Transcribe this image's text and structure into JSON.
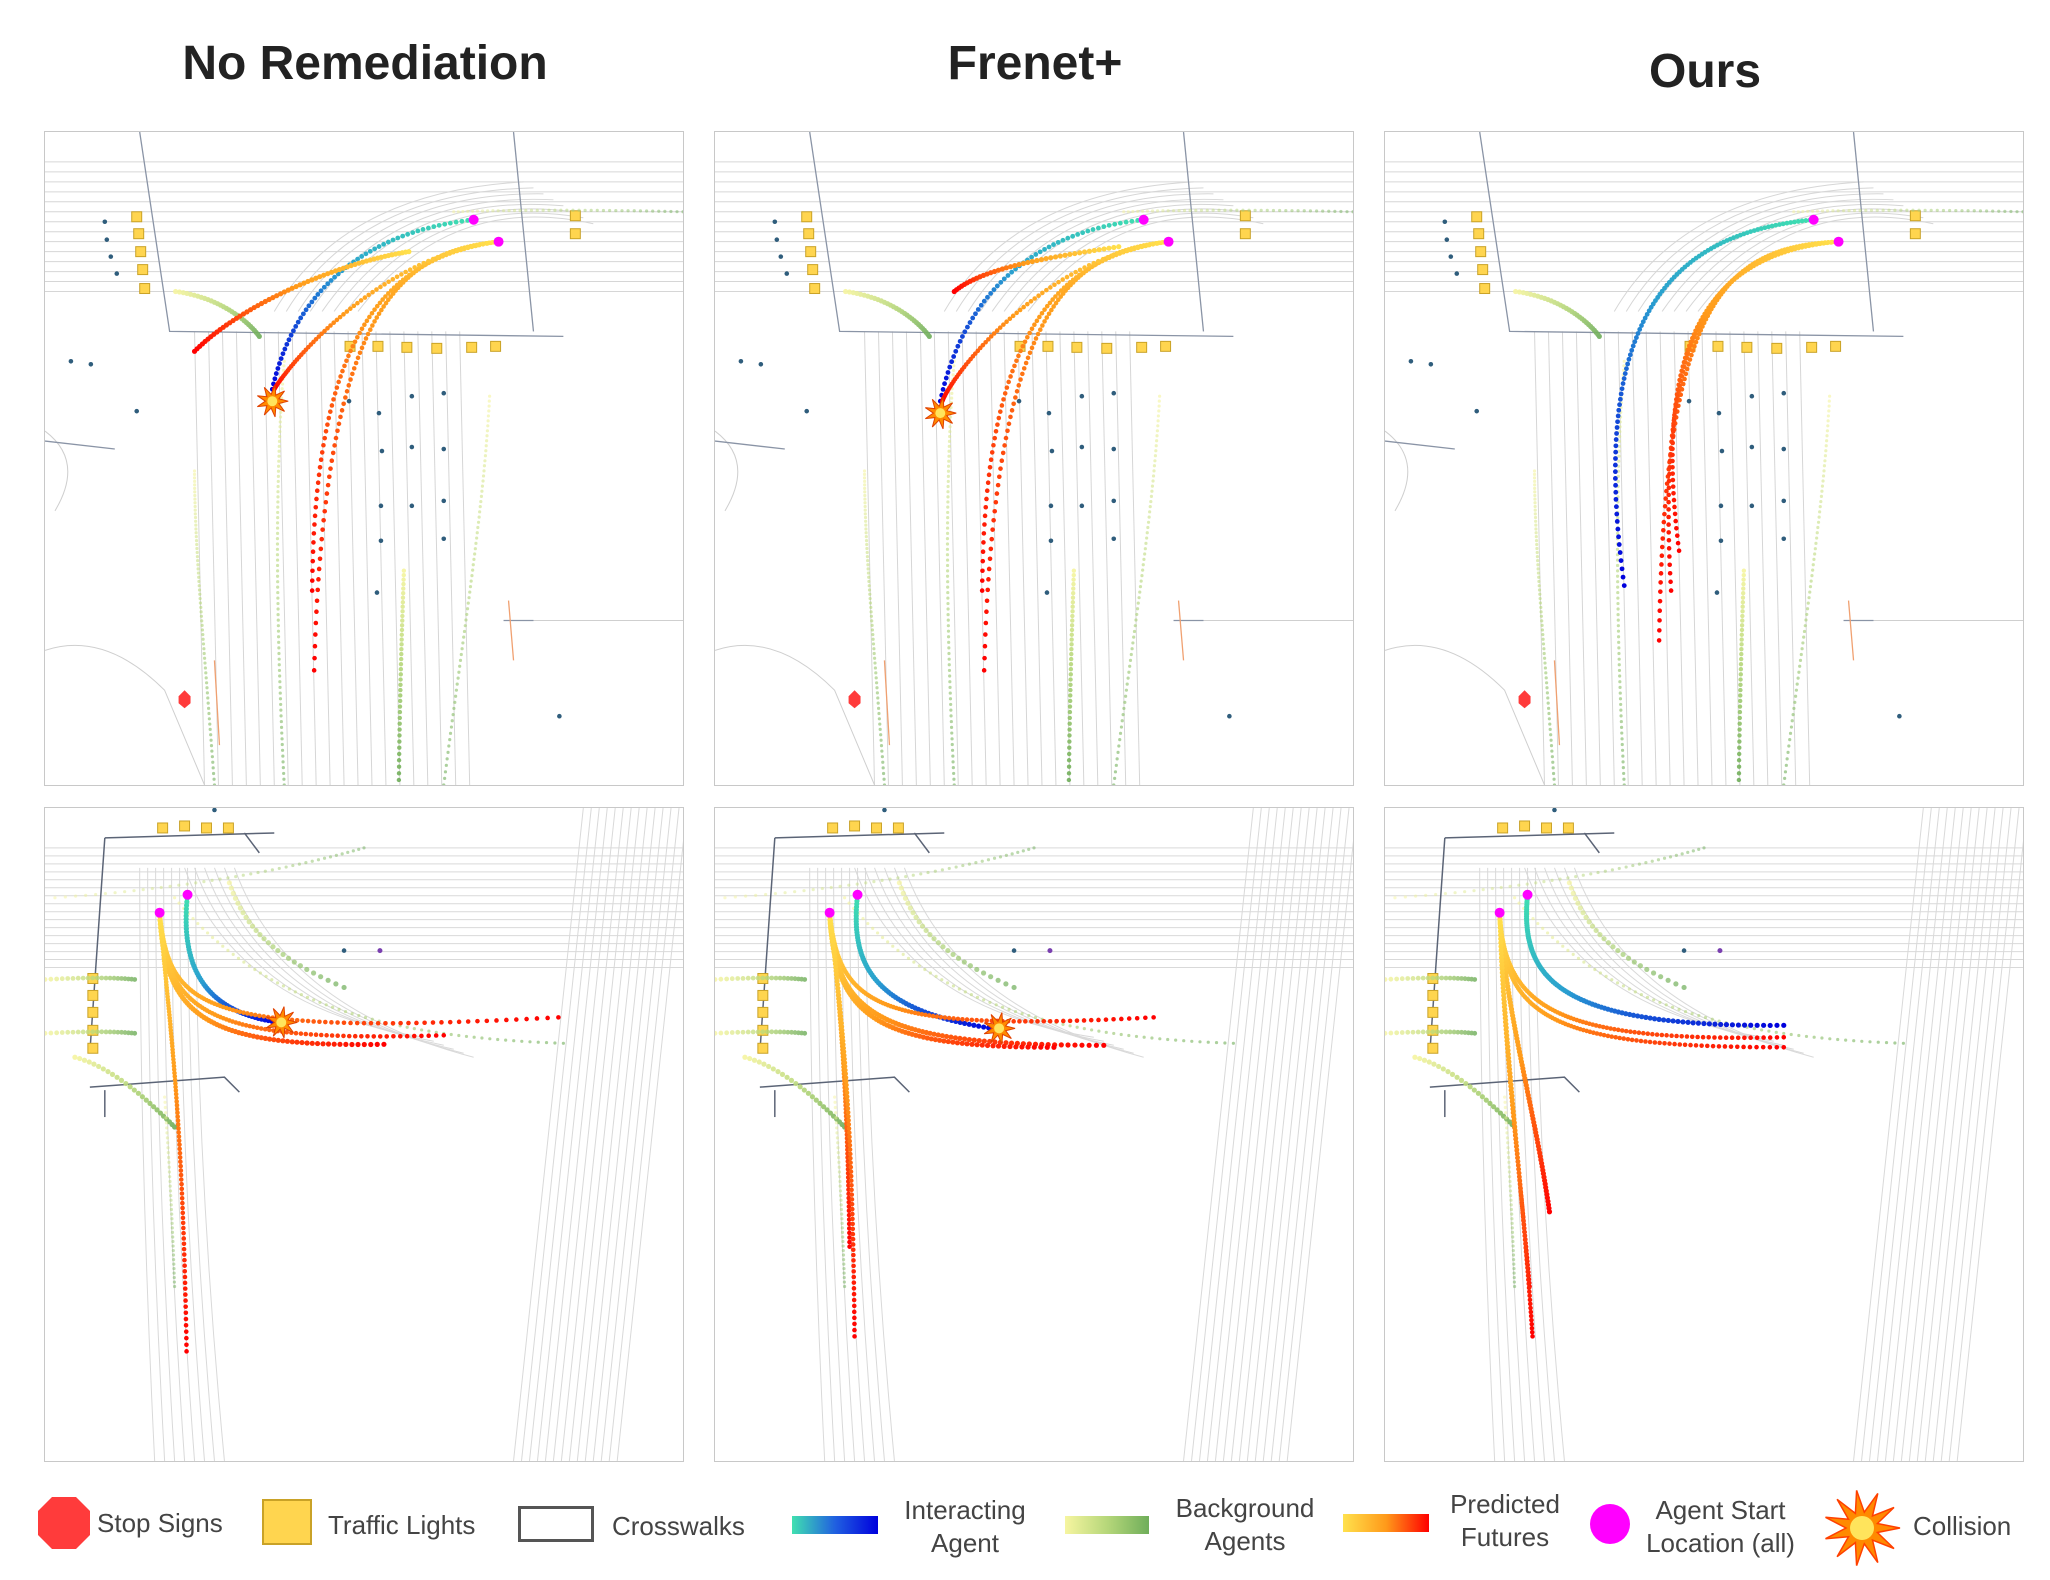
{
  "columns": [
    {
      "title": "No Remediation"
    },
    {
      "title": "Frenet+"
    },
    {
      "title": "Ours"
    }
  ],
  "legend": {
    "stop_signs": "Stop Signs",
    "traffic_lights": "Traffic Lights",
    "crosswalks": "Crosswalks",
    "interacting_agent": "Interacting Agent",
    "background_agents": "Background Agents",
    "predicted_futures": "Predicted Futures",
    "agent_start": "Agent Start Location (all)",
    "collision": "Collision"
  },
  "colors": {
    "stop_sign": "#ff3b3b",
    "traffic_light": "#ffd54f",
    "start": "#ff00ff",
    "interacting_start": "#40e0b0",
    "interacting_end": "#0000dd",
    "background_start": "#f6f5a0",
    "background_end": "#6fae5a",
    "predicted_start": "#ffe14d",
    "predicted_end": "#ff0000",
    "collision": "#ff7a00"
  },
  "scenes": {
    "top_collision": [
      true,
      true,
      false
    ],
    "bottom_collision": [
      true,
      true,
      false
    ]
  }
}
